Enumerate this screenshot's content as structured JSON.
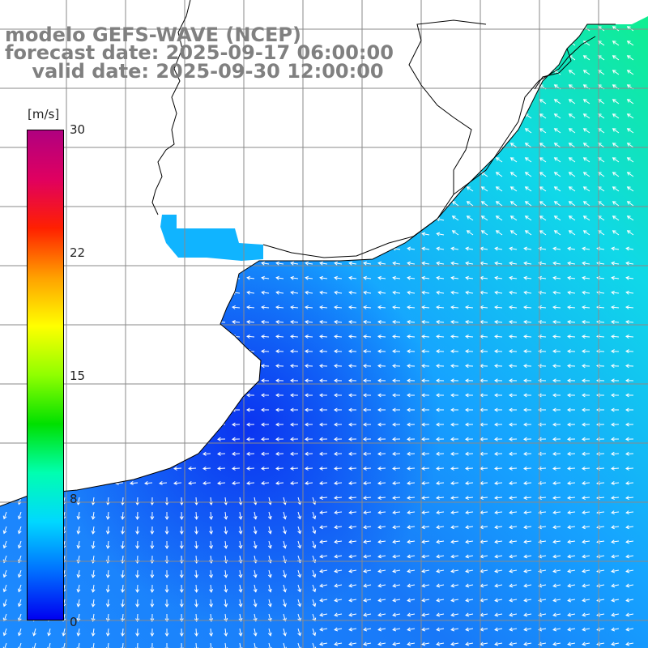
{
  "title": {
    "line1": "modelo GEFS-WAVE (NCEP)",
    "line2": "forecast date: 2025-09-17 06:00:00",
    "line3": "    valid date: 2025-09-30 12:00:00"
  },
  "legend": {
    "unit": "[m/s]",
    "ticks": [
      "30",
      "22",
      "15",
      "8",
      "0"
    ],
    "tick_values": [
      30,
      22,
      15,
      8,
      0
    ],
    "range": [
      0,
      30
    ],
    "colors": [
      "#0000f0",
      "#0070ff",
      "#00d8ff",
      "#00ffb0",
      "#00e000",
      "#90ff00",
      "#ffff00",
      "#ffa000",
      "#ff2000",
      "#e00060",
      "#b00080"
    ]
  },
  "map": {
    "variable": "wind speed and direction",
    "region": "Rio de la Plata / Uruguay / Buenos Aires coast",
    "ocean_color_low": "#0a3ff0",
    "ocean_color_mid": "#1aa0ff",
    "ocean_color_high": "#10f090",
    "land_color": "#ffffff",
    "grid_color": "#9a9a9a",
    "arrow_color": "#ffffff"
  }
}
